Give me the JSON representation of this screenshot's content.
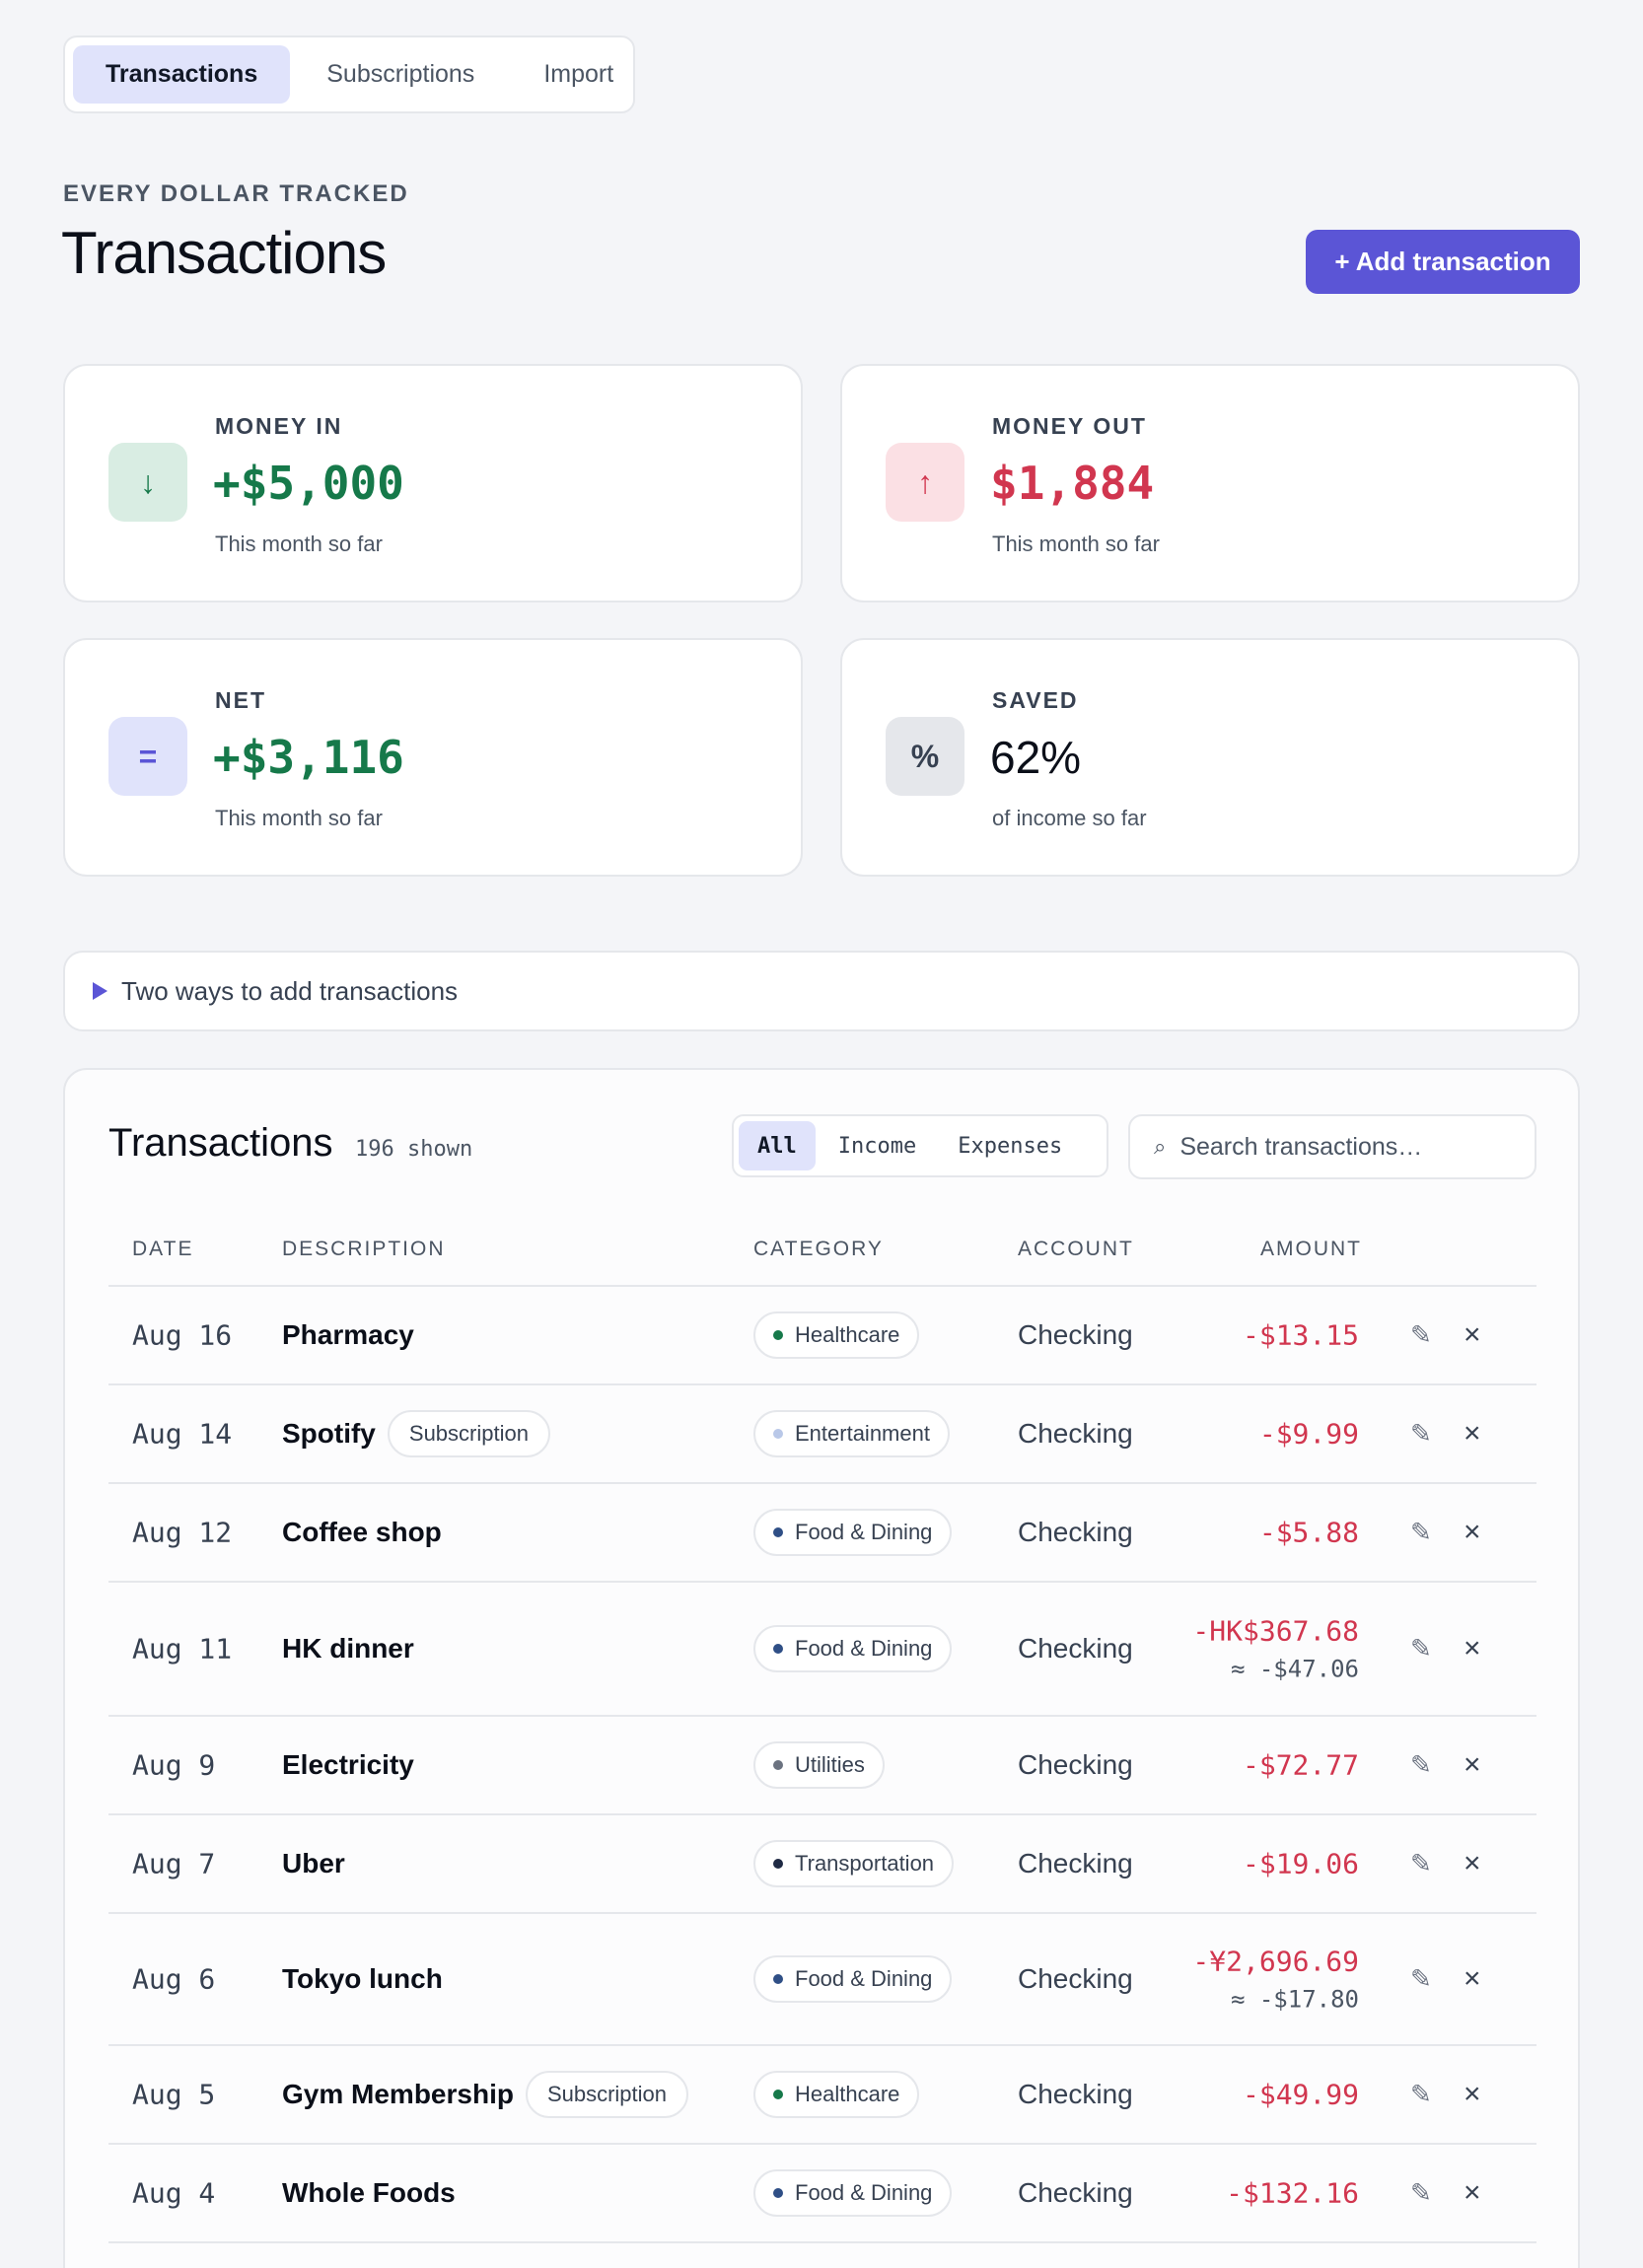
{
  "top_tabs": [
    "Transactions",
    "Subscriptions",
    "Import"
  ],
  "header": {
    "eyebrow": "EVERY DOLLAR TRACKED",
    "title": "Transactions",
    "add_button": "+ Add transaction"
  },
  "stats": [
    {
      "label": "MONEY IN",
      "value": "+$5,000",
      "sub": "This month so far",
      "icon": "↓",
      "icon_name": "arrow-down-icon",
      "value_color": "#16794a",
      "icon_bg": "#d9ede3",
      "icon_color": "#16794a"
    },
    {
      "label": "MONEY OUT",
      "value": "$1,884",
      "sub": "This month so far",
      "icon": "↑",
      "icon_name": "arrow-up-icon",
      "value_color": "#d1364f",
      "icon_bg": "#fbe0e4",
      "icon_color": "#d1364f"
    },
    {
      "label": "NET",
      "value": "+$3,116",
      "sub": "This month so far",
      "icon": "=",
      "icon_name": "equals-icon",
      "value_color": "#16794a",
      "icon_bg": "#e0e3fb",
      "icon_color": "#5b55d6"
    },
    {
      "label": "SAVED",
      "value": "62%",
      "sub": "of income so far",
      "icon": "%",
      "icon_name": "percent-icon",
      "value_color": "#0b0f19",
      "icon_bg": "#e5e7eb",
      "icon_color": "#374151"
    }
  ],
  "disclosure": {
    "label": "Two ways to add transactions"
  },
  "panel": {
    "title": "Transactions",
    "shown": "196 shown",
    "filters": [
      "All",
      "Income",
      "Expenses"
    ],
    "search_placeholder": "Search transactions…",
    "columns": {
      "date": "DATE",
      "description": "DESCRIPTION",
      "category": "CATEGORY",
      "account": "ACCOUNT",
      "amount": "AMOUNT"
    }
  },
  "transactions": [
    {
      "date": "Aug 16",
      "description": "Pharmacy",
      "badge": "",
      "category": "Healthcare",
      "dot": "#16794a",
      "account": "Checking",
      "amount": "-$13.15",
      "converted": ""
    },
    {
      "date": "Aug 14",
      "description": "Spotify",
      "badge": "Subscription",
      "category": "Entertainment",
      "dot": "#b9c8e8",
      "account": "Checking",
      "amount": "-$9.99",
      "converted": ""
    },
    {
      "date": "Aug 12",
      "description": "Coffee shop",
      "badge": "",
      "category": "Food & Dining",
      "dot": "#2f4f86",
      "account": "Checking",
      "amount": "-$5.88",
      "converted": ""
    },
    {
      "date": "Aug 11",
      "description": "HK dinner",
      "badge": "",
      "category": "Food & Dining",
      "dot": "#2f4f86",
      "account": "Checking",
      "amount": "-HK$367.68",
      "converted": "≈ -$47.06"
    },
    {
      "date": "Aug 9",
      "description": "Electricity",
      "badge": "",
      "category": "Utilities",
      "dot": "#6b7280",
      "account": "Checking",
      "amount": "-$72.77",
      "converted": ""
    },
    {
      "date": "Aug 7",
      "description": "Uber",
      "badge": "",
      "category": "Transportation",
      "dot": "#1f2a44",
      "account": "Checking",
      "amount": "-$19.06",
      "converted": ""
    },
    {
      "date": "Aug 6",
      "description": "Tokyo lunch",
      "badge": "",
      "category": "Food & Dining",
      "dot": "#2f4f86",
      "account": "Checking",
      "amount": "-¥2,696.69",
      "converted": "≈ -$17.80"
    },
    {
      "date": "Aug 5",
      "description": "Gym Membership",
      "badge": "Subscription",
      "category": "Healthcare",
      "dot": "#16794a",
      "account": "Checking",
      "amount": "-$49.99",
      "converted": ""
    },
    {
      "date": "Aug 4",
      "description": "Whole Foods",
      "badge": "",
      "category": "Food & Dining",
      "dot": "#2f4f86",
      "account": "Checking",
      "amount": "-$132.16",
      "converted": ""
    }
  ],
  "icons": {
    "edit": "pencil-icon",
    "delete": "close-icon",
    "search": "search-icon"
  }
}
